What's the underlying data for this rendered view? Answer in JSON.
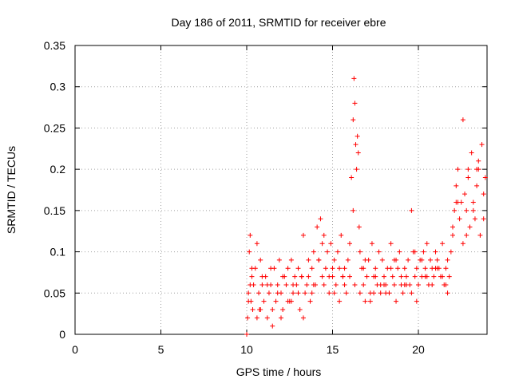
{
  "chart_data": {
    "type": "scatter",
    "title": "Day 186 of 2011, SRMTID for receiver ebre",
    "xlabel": "GPS time / hours",
    "ylabel": "SRMTID / TECUs",
    "xlim": [
      0,
      24
    ],
    "ylim": [
      0,
      0.35
    ],
    "x_ticks": [
      0,
      5,
      10,
      15,
      20
    ],
    "y_ticks": [
      0,
      0.05,
      0.1,
      0.15,
      0.2,
      0.25,
      0.3,
      0.35
    ],
    "x_tick_labels": [
      "0",
      "5",
      "10",
      "15",
      "20"
    ],
    "y_tick_labels": [
      "0",
      "0.05",
      "0.1",
      "0.15",
      "0.2",
      "0.25",
      "0.3",
      "0.35"
    ],
    "grid": true,
    "marker": "+",
    "color": "#ff0000",
    "series": [
      {
        "name": "SRMTID",
        "x": [
          10.0,
          10.05,
          10.1,
          10.15,
          10.2,
          10.25,
          10.3,
          10.35,
          10.4,
          10.5,
          10.6,
          10.7,
          10.75,
          10.8,
          10.9,
          11.0,
          11.1,
          11.2,
          11.3,
          11.4,
          11.5,
          11.6,
          11.7,
          11.8,
          11.9,
          12.0,
          12.1,
          12.2,
          12.3,
          12.4,
          12.5,
          12.6,
          12.7,
          12.8,
          12.9,
          13.0,
          13.1,
          13.2,
          13.3,
          13.4,
          13.5,
          13.6,
          13.7,
          13.8,
          13.9,
          14.0,
          14.1,
          14.2,
          14.3,
          14.4,
          14.5,
          14.6,
          14.7,
          14.8,
          14.9,
          15.0,
          15.1,
          15.2,
          15.3,
          15.4,
          15.5,
          15.6,
          15.7,
          15.8,
          15.9,
          16.0,
          16.1,
          16.2,
          16.25,
          16.3,
          16.35,
          16.4,
          16.45,
          16.5,
          16.55,
          16.6,
          16.7,
          16.8,
          16.9,
          17.0,
          17.1,
          17.2,
          17.3,
          17.4,
          17.5,
          17.6,
          17.7,
          17.8,
          17.9,
          18.0,
          18.1,
          18.2,
          18.3,
          18.4,
          18.5,
          18.6,
          18.7,
          18.8,
          18.9,
          19.0,
          19.1,
          19.2,
          19.3,
          19.4,
          19.5,
          19.6,
          19.7,
          19.8,
          19.9,
          20.0,
          20.1,
          20.2,
          20.3,
          20.4,
          20.5,
          20.6,
          20.7,
          20.8,
          20.9,
          21.0,
          21.1,
          21.2,
          21.3,
          21.4,
          21.5,
          21.6,
          21.7,
          21.8,
          21.9,
          22.0,
          22.1,
          22.2,
          22.3,
          22.4,
          22.5,
          22.6,
          22.7,
          22.8,
          22.9,
          23.0,
          23.1,
          23.2,
          23.3,
          23.4,
          23.5,
          23.6,
          23.7,
          23.8,
          23.9,
          10.1,
          10.3,
          10.6,
          10.9,
          11.2,
          11.5,
          11.8,
          12.1,
          12.4,
          12.7,
          13.0,
          13.3,
          13.6,
          13.9,
          14.2,
          14.5,
          14.8,
          15.1,
          15.4,
          15.7,
          16.0,
          16.3,
          16.6,
          16.9,
          17.2,
          17.5,
          17.8,
          18.1,
          18.4,
          18.7,
          19.0,
          19.3,
          19.6,
          19.9,
          20.2,
          20.5,
          20.8,
          21.1,
          21.4,
          21.7,
          22.0,
          22.3,
          22.6,
          22.9,
          23.2,
          23.5,
          23.8,
          10.2,
          10.8,
          11.4,
          12.0,
          12.6,
          13.2,
          13.8,
          14.4,
          15.0,
          15.6,
          16.2,
          16.8,
          17.4,
          18.0,
          18.6,
          19.2,
          19.8,
          20.4,
          21.0,
          21.6,
          22.2,
          22.8,
          23.4
        ],
        "y": [
          0.0,
          0.02,
          0.05,
          0.1,
          0.12,
          0.04,
          0.07,
          0.03,
          0.06,
          0.08,
          0.11,
          0.05,
          0.03,
          0.09,
          0.06,
          0.04,
          0.07,
          0.02,
          0.05,
          0.06,
          0.01,
          0.08,
          0.04,
          0.06,
          0.09,
          0.05,
          0.03,
          0.07,
          0.06,
          0.08,
          0.04,
          0.09,
          0.05,
          0.07,
          0.06,
          0.08,
          0.03,
          0.07,
          0.12,
          0.05,
          0.06,
          0.09,
          0.04,
          0.08,
          0.1,
          0.06,
          0.13,
          0.09,
          0.14,
          0.07,
          0.12,
          0.08,
          0.1,
          0.05,
          0.11,
          0.07,
          0.09,
          0.06,
          0.1,
          0.08,
          0.12,
          0.07,
          0.06,
          0.05,
          0.09,
          0.11,
          0.19,
          0.26,
          0.31,
          0.28,
          0.23,
          0.2,
          0.24,
          0.22,
          0.13,
          0.1,
          0.08,
          0.06,
          0.04,
          0.07,
          0.09,
          0.05,
          0.11,
          0.07,
          0.08,
          0.06,
          0.1,
          0.05,
          0.09,
          0.07,
          0.06,
          0.08,
          0.05,
          0.11,
          0.07,
          0.06,
          0.09,
          0.08,
          0.1,
          0.06,
          0.05,
          0.08,
          0.07,
          0.09,
          0.06,
          0.15,
          0.1,
          0.07,
          0.08,
          0.06,
          0.09,
          0.07,
          0.1,
          0.08,
          0.11,
          0.06,
          0.09,
          0.08,
          0.07,
          0.1,
          0.09,
          0.08,
          0.07,
          0.11,
          0.06,
          0.08,
          0.05,
          0.07,
          0.1,
          0.12,
          0.15,
          0.18,
          0.2,
          0.14,
          0.16,
          0.26,
          0.17,
          0.15,
          0.19,
          0.13,
          0.22,
          0.16,
          0.14,
          0.18,
          0.2,
          0.12,
          0.23,
          0.17,
          0.19,
          0.04,
          0.08,
          0.02,
          0.07,
          0.06,
          0.03,
          0.05,
          0.07,
          0.04,
          0.06,
          0.05,
          0.02,
          0.07,
          0.06,
          0.09,
          0.06,
          0.07,
          0.05,
          0.04,
          0.08,
          0.07,
          0.06,
          0.05,
          0.09,
          0.04,
          0.07,
          0.06,
          0.05,
          0.08,
          0.04,
          0.07,
          0.06,
          0.05,
          0.04,
          0.09,
          0.07,
          0.06,
          0.08,
          0.07,
          0.09,
          0.13,
          0.16,
          0.11,
          0.2,
          0.15,
          0.21,
          0.14,
          0.06,
          0.03,
          0.08,
          0.02,
          0.04,
          0.07,
          0.05,
          0.11,
          0.08,
          0.07,
          0.15,
          0.08,
          0.05,
          0.06,
          0.09,
          0.06,
          0.1,
          0.07,
          0.08,
          0.06,
          0.16,
          0.12,
          0.2
        ]
      }
    ]
  }
}
